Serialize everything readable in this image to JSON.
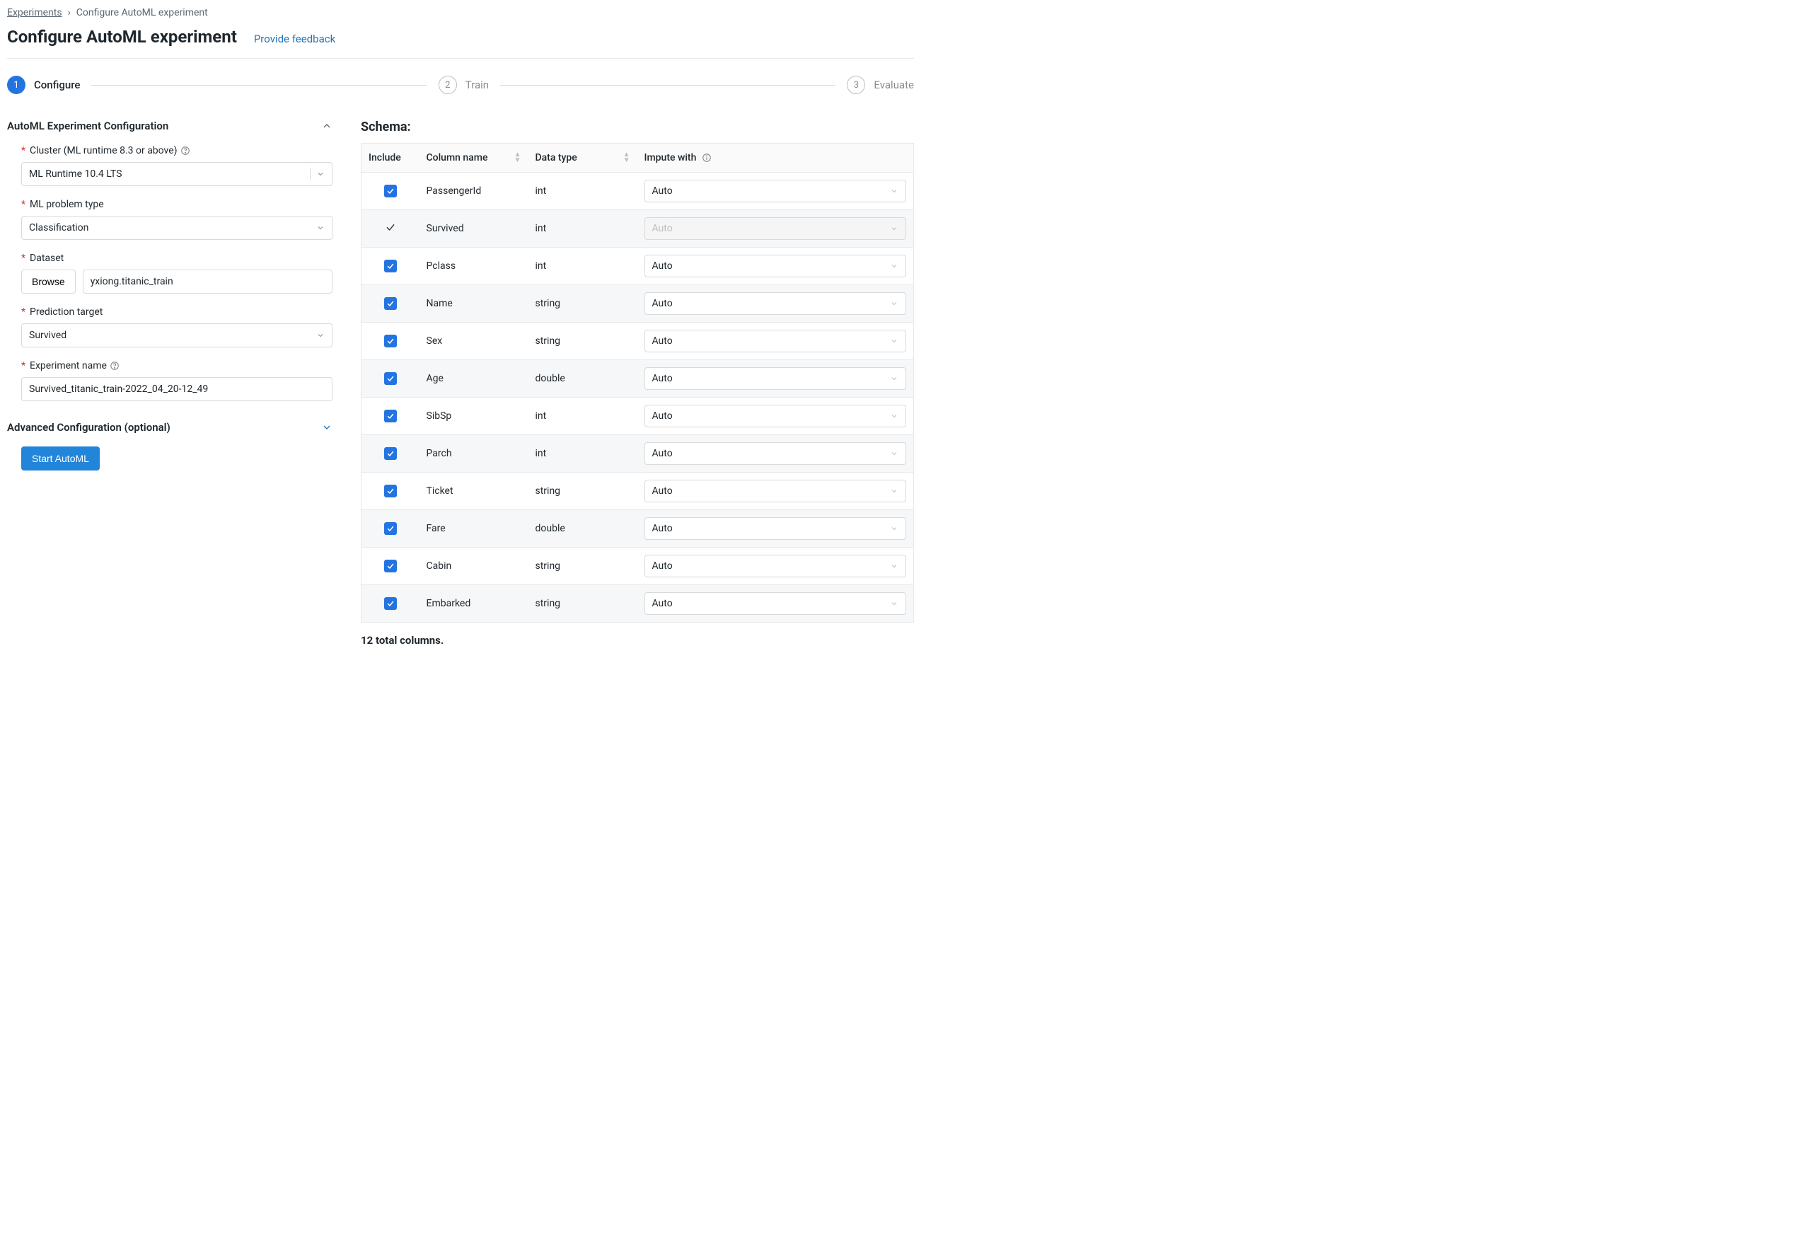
{
  "breadcrumb": {
    "link": "Experiments",
    "current": "Configure AutoML experiment"
  },
  "header": {
    "title": "Configure AutoML experiment",
    "feedback": "Provide feedback"
  },
  "stepper": {
    "s1": "Configure",
    "s2": "Train",
    "s3": "Evaluate",
    "n1": "1",
    "n2": "2",
    "n3": "3"
  },
  "sections": {
    "config": "AutoML Experiment Configuration",
    "advanced": "Advanced Configuration (optional)"
  },
  "labels": {
    "cluster": "Cluster (ML runtime 8.3 or above)",
    "problem": "ML problem type",
    "dataset": "Dataset",
    "browse": "Browse",
    "target": "Prediction target",
    "expname": "Experiment name",
    "start": "Start AutoML"
  },
  "values": {
    "cluster": "ML Runtime 10.4 LTS",
    "problem": "Classification",
    "dataset": "yxiong.titanic_train",
    "target": "Survived",
    "expname": "Survived_titanic_train-2022_04_20-12_49"
  },
  "schema": {
    "title": "Schema:",
    "headers": {
      "include": "Include",
      "name": "Column name",
      "type": "Data type",
      "impute": "Impute with"
    },
    "total": "12 total columns.",
    "rows": [
      {
        "include": "checked",
        "name": "PassengerId",
        "type": "int",
        "impute": "Auto",
        "disabled": false
      },
      {
        "include": "plain",
        "name": "Survived",
        "type": "int",
        "impute": "Auto",
        "disabled": true
      },
      {
        "include": "checked",
        "name": "Pclass",
        "type": "int",
        "impute": "Auto",
        "disabled": false
      },
      {
        "include": "checked",
        "name": "Name",
        "type": "string",
        "impute": "Auto",
        "disabled": false
      },
      {
        "include": "checked",
        "name": "Sex",
        "type": "string",
        "impute": "Auto",
        "disabled": false
      },
      {
        "include": "checked",
        "name": "Age",
        "type": "double",
        "impute": "Auto",
        "disabled": false
      },
      {
        "include": "checked",
        "name": "SibSp",
        "type": "int",
        "impute": "Auto",
        "disabled": false
      },
      {
        "include": "checked",
        "name": "Parch",
        "type": "int",
        "impute": "Auto",
        "disabled": false
      },
      {
        "include": "checked",
        "name": "Ticket",
        "type": "string",
        "impute": "Auto",
        "disabled": false
      },
      {
        "include": "checked",
        "name": "Fare",
        "type": "double",
        "impute": "Auto",
        "disabled": false
      },
      {
        "include": "checked",
        "name": "Cabin",
        "type": "string",
        "impute": "Auto",
        "disabled": false
      },
      {
        "include": "checked",
        "name": "Embarked",
        "type": "string",
        "impute": "Auto",
        "disabled": false
      }
    ]
  }
}
